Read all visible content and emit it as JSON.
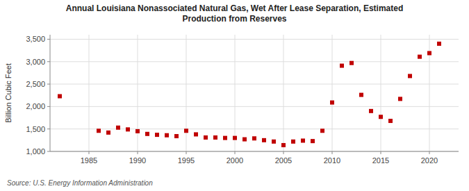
{
  "chart_data": {
    "type": "scatter",
    "title": "Annual Louisiana Nonassociated Natural Gas, Wet After Lease Separation, Estimated\nProduction from Reserves",
    "y_label": "Billion Cubic Feet",
    "annotations": [
      "Source: U.S. Energy Information Administration"
    ],
    "x": [
      1982,
      1986,
      1987,
      1988,
      1989,
      1990,
      1991,
      1992,
      1993,
      1994,
      1995,
      1996,
      1997,
      1998,
      1999,
      2000,
      2001,
      2002,
      2003,
      2004,
      2005,
      2006,
      2007,
      2008,
      2009,
      2010,
      2011,
      2012,
      2013,
      2014,
      2015,
      2016,
      2017,
      2018,
      2019,
      2020,
      2021
    ],
    "values": [
      2230,
      1460,
      1420,
      1530,
      1490,
      1450,
      1390,
      1370,
      1360,
      1340,
      1460,
      1380,
      1310,
      1310,
      1300,
      1300,
      1270,
      1290,
      1250,
      1220,
      1140,
      1220,
      1240,
      1230,
      1460,
      2090,
      2910,
      2970,
      2260,
      1900,
      1770,
      1680,
      2170,
      2680,
      3110,
      3190,
      3400
    ],
    "color": "#c00000",
    "marker": "square",
    "xlim": [
      1981,
      2023
    ],
    "ylim": [
      1000,
      3600
    ],
    "xticks": [
      1985,
      1990,
      1995,
      2000,
      2005,
      2010,
      2015,
      2020
    ],
    "yticks": [
      {
        "value": 1000,
        "label": "1,000"
      },
      {
        "value": 1500,
        "label": "1,500"
      },
      {
        "value": 2000,
        "label": "2,000"
      },
      {
        "value": 2500,
        "label": "2,500"
      },
      {
        "value": 3000,
        "label": "3,000"
      },
      {
        "value": 3500,
        "label": "3,500"
      }
    ],
    "grid": true
  }
}
